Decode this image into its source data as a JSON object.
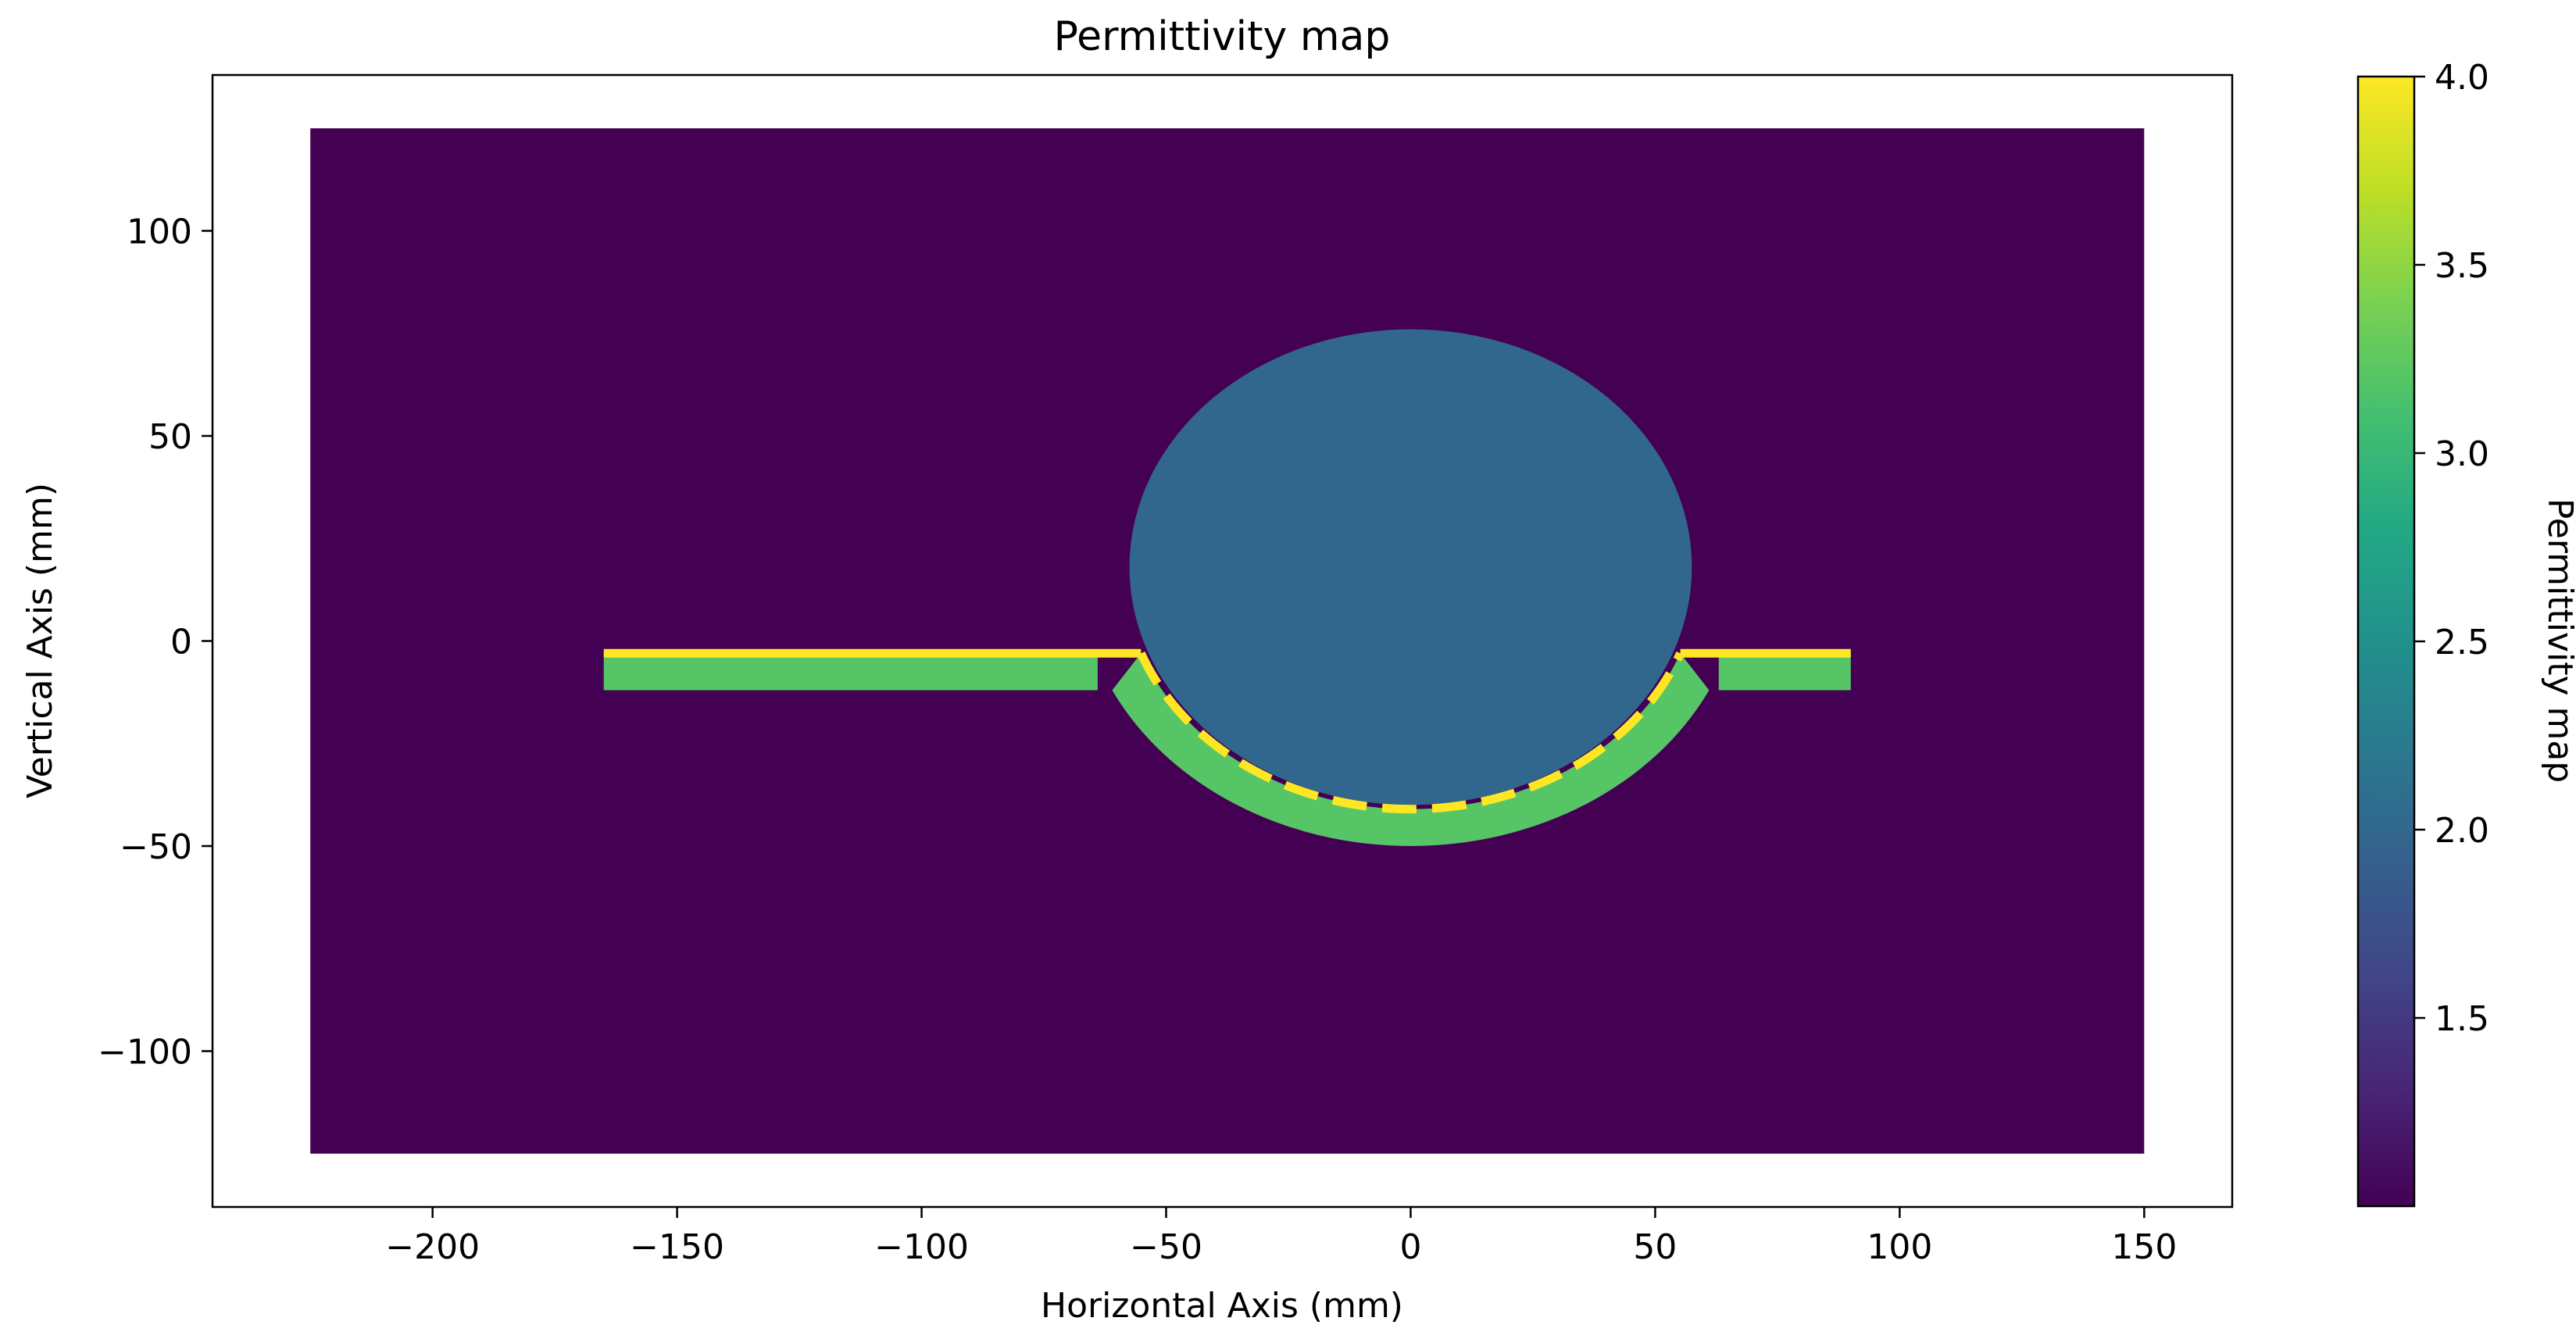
{
  "chart_data": {
    "type": "heatmap",
    "title": "Permittivity map",
    "xlabel": "Horizontal Axis (mm)",
    "ylabel": "Vertical Axis (mm)",
    "colorbar_label": "Permittivity map",
    "colormap": "viridis",
    "xlim": [
      -245,
      168
    ],
    "ylim": [
      -138,
      138
    ],
    "xticks": [
      -200,
      -150,
      -100,
      -50,
      0,
      50,
      100,
      150
    ],
    "xtick_labels": [
      "−200",
      "−150",
      "−100",
      "−50",
      "0",
      "50",
      "100",
      "150"
    ],
    "yticks": [
      100,
      50,
      0,
      -50,
      -100
    ],
    "ytick_labels": [
      "100",
      "50",
      "0",
      "−50",
      "−100"
    ],
    "color_range": [
      1.0,
      4.0
    ],
    "colorbar_ticks": [
      1.5,
      2.0,
      2.5,
      3.0,
      3.5,
      4.0
    ],
    "colorbar_tick_labels": [
      "1.5",
      "2.0",
      "2.5",
      "3.0",
      "3.5",
      "4.0"
    ],
    "grid": false,
    "regions": [
      {
        "name": "background",
        "shape": "rectangle",
        "value": 1.0,
        "x_range": [
          -225,
          150
        ],
        "y_range": [
          -125,
          125
        ]
      },
      {
        "name": "ellipse",
        "shape": "ellipse",
        "value": 2.0,
        "center": [
          0,
          18
        ],
        "radii": [
          57.5,
          58
        ]
      },
      {
        "name": "left-strip",
        "shape": "rectangle",
        "value": 3.2,
        "x_range": [
          -165,
          -64
        ],
        "y_range": [
          -12,
          -3
        ]
      },
      {
        "name": "right-strip",
        "shape": "rectangle",
        "value": 3.2,
        "x_range": [
          63,
          90
        ],
        "y_range": [
          -12,
          -3
        ]
      },
      {
        "name": "curved-band",
        "shape": "arc-band",
        "value": 3.2,
        "center": [
          0,
          18
        ],
        "outer_radius": 68,
        "inner_radius": 59
      },
      {
        "name": "conductor-line",
        "shape": "polyline",
        "value": 4.0,
        "x_range": [
          -165,
          90
        ],
        "y": -3,
        "arc_bottom": -41
      }
    ]
  }
}
